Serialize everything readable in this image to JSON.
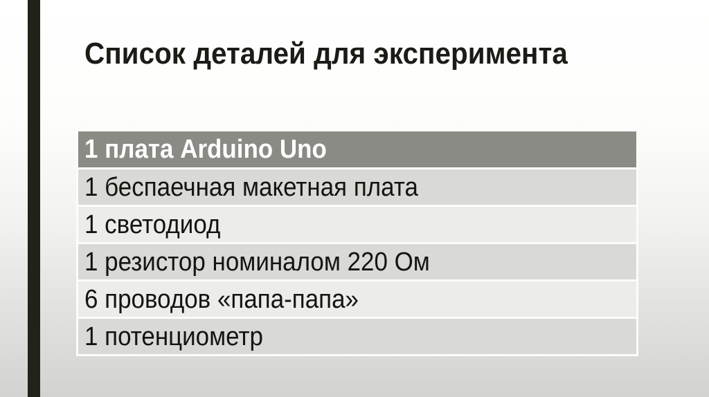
{
  "slide": {
    "title": "Список деталей для эксперимента",
    "table": {
      "header": "1 плата Arduino Uno",
      "rows": [
        "1 беспаечная макетная плата",
        "1 светодиод",
        "1 резистор номиналом 220 Ом",
        "6 проводов «папа-папа»",
        "1 потенциометр"
      ]
    },
    "colors": {
      "accent_bar": "#22221a",
      "header_bg": "#8b8b85",
      "header_text": "#ffffff",
      "row_dark_bg": "#d9d9d6",
      "row_light_bg": "#ececea",
      "body_text": "#141410",
      "background_top": "#ffffff",
      "background_bottom": "#d2d2d0"
    }
  }
}
